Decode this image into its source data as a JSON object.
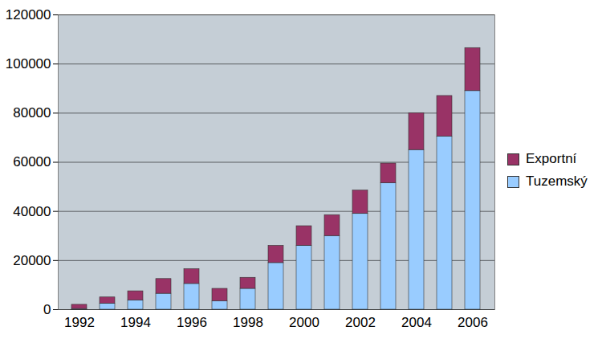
{
  "chart_data": {
    "type": "bar",
    "stacked": true,
    "categories": [
      1992,
      null,
      1994,
      null,
      1996,
      null,
      1998,
      null,
      2000,
      null,
      2002,
      null,
      2004,
      null,
      2006
    ],
    "series": [
      {
        "name": "Tuzemský",
        "color": "#99ccff",
        "values": [
          300,
          2500,
          3800,
          6500,
          10500,
          3500,
          8500,
          19000,
          26000,
          30000,
          39000,
          51500,
          65000,
          70500,
          89000
        ]
      },
      {
        "name": "Exportní",
        "color": "#993366",
        "values": [
          1700,
          2500,
          3700,
          6000,
          6000,
          5000,
          4500,
          7000,
          8000,
          8500,
          9500,
          8000,
          15000,
          16500,
          17500
        ]
      }
    ],
    "ylim": [
      0,
      120000
    ],
    "yticks": [
      0,
      20000,
      40000,
      60000,
      80000,
      100000,
      120000
    ],
    "grid": true,
    "legend": "right"
  }
}
